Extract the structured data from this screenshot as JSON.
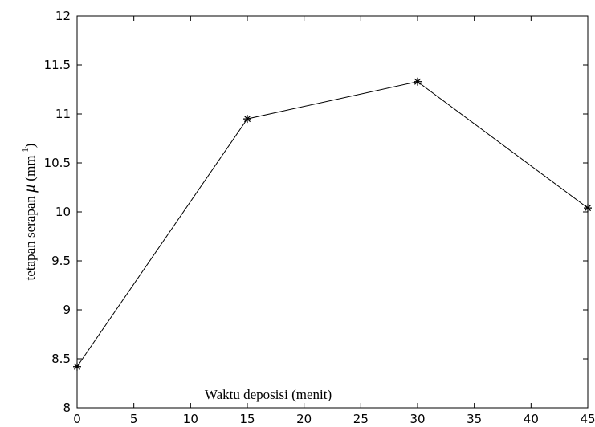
{
  "chart_data": {
    "type": "line",
    "title": "",
    "xlabel": "Waktu deposisi  (menit)",
    "ylabel": {
      "prefix": "tetapan serapan ",
      "symbol": "μ",
      "unit_open": "  (mm",
      "unit_exp": "-1",
      "unit_close": ")"
    },
    "xlim": [
      0,
      45
    ],
    "ylim": [
      8,
      12
    ],
    "xticks": [
      0,
      5,
      10,
      15,
      20,
      25,
      30,
      35,
      40,
      45
    ],
    "yticks": [
      8,
      8.5,
      9,
      9.5,
      10,
      10.5,
      11,
      11.5,
      12
    ],
    "xtick_labels": [
      "0",
      "5",
      "10",
      "15",
      "20",
      "25",
      "30",
      "35",
      "40",
      "45"
    ],
    "ytick_labels": [
      "8",
      "8.5",
      "9",
      "9.5",
      "10",
      "10.5",
      "11",
      "11.5",
      "12"
    ],
    "grid": false,
    "marker": "asterisk",
    "line_color": "#000000",
    "series": [
      {
        "x": [
          0,
          15,
          30,
          45
        ],
        "values": [
          8.42,
          10.95,
          11.33,
          10.04
        ]
      }
    ]
  }
}
